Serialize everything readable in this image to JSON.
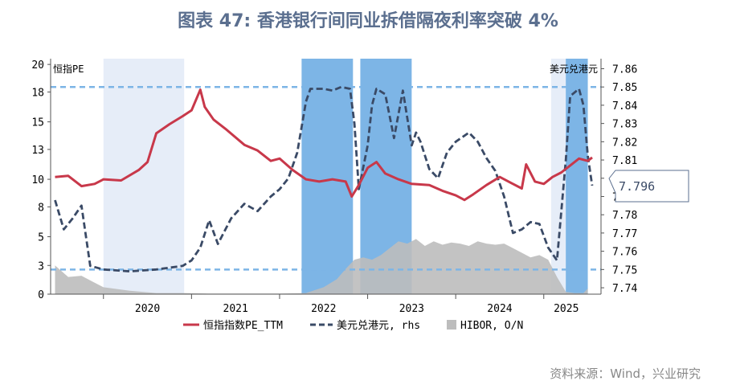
{
  "chart_data": {
    "type": "line",
    "title": "图表 47: 香港银行间同业拆借隔夜利率突破 4%",
    "left_axis_label": "恒指PE",
    "right_axis_label": "美元兑港元",
    "left_ticks": [
      "20",
      "18",
      "15",
      "13",
      "10",
      "8",
      "5",
      "3",
      "0"
    ],
    "right_ticks": [
      "7.86",
      "7.85",
      "7.84",
      "7.83",
      "7.82",
      "7.81",
      "7.80",
      "7.79",
      "7.78",
      "7.77",
      "7.76",
      "7.75",
      "7.74"
    ],
    "x_ticks": [
      "2020",
      "2021",
      "2022",
      "2023",
      "2024",
      "2025"
    ],
    "legend": [
      "恒指指数PE_TTM",
      "美元兑港元, rhs",
      "HIBOR, O/N"
    ],
    "callout_value": "7.796",
    "ref_lines_rhs": [
      7.85,
      7.75
    ],
    "shaded_periods_light": [
      [
        "2020-01",
        "2020-12"
      ],
      [
        "2025-02",
        "2025-04"
      ]
    ],
    "shaded_periods_dark": [
      [
        "2022-04",
        "2022-11"
      ],
      [
        "2022-12",
        "2023-07"
      ],
      [
        "2025-04",
        "2025-07"
      ]
    ],
    "series": [
      {
        "name": "恒指指数PE_TTM",
        "axis": "left",
        "color": "#c8384a",
        "points": [
          [
            2019.45,
            10.2
          ],
          [
            2019.6,
            10.3
          ],
          [
            2019.75,
            9.4
          ],
          [
            2019.9,
            9.6
          ],
          [
            2020.0,
            10.0
          ],
          [
            2020.2,
            9.9
          ],
          [
            2020.4,
            10.8
          ],
          [
            2020.5,
            11.5
          ],
          [
            2020.6,
            14.0
          ],
          [
            2020.75,
            14.8
          ],
          [
            2020.9,
            15.5
          ],
          [
            2021.0,
            16.0
          ],
          [
            2021.1,
            17.8
          ],
          [
            2021.15,
            16.3
          ],
          [
            2021.25,
            15.2
          ],
          [
            2021.4,
            14.3
          ],
          [
            2021.6,
            13.0
          ],
          [
            2021.75,
            12.5
          ],
          [
            2021.9,
            11.6
          ],
          [
            2022.0,
            11.8
          ],
          [
            2022.15,
            10.8
          ],
          [
            2022.3,
            10.0
          ],
          [
            2022.45,
            9.8
          ],
          [
            2022.6,
            10.0
          ],
          [
            2022.75,
            9.8
          ],
          [
            2022.82,
            8.5
          ],
          [
            2022.9,
            9.5
          ],
          [
            2023.0,
            11.0
          ],
          [
            2023.1,
            11.5
          ],
          [
            2023.2,
            10.5
          ],
          [
            2023.35,
            10.0
          ],
          [
            2023.5,
            9.6
          ],
          [
            2023.7,
            9.5
          ],
          [
            2023.85,
            9.0
          ],
          [
            2024.0,
            8.6
          ],
          [
            2024.1,
            8.2
          ],
          [
            2024.2,
            8.7
          ],
          [
            2024.35,
            9.5
          ],
          [
            2024.5,
            10.2
          ],
          [
            2024.65,
            9.6
          ],
          [
            2024.75,
            9.2
          ],
          [
            2024.8,
            11.3
          ],
          [
            2024.9,
            9.8
          ],
          [
            2025.0,
            9.6
          ],
          [
            2025.1,
            10.2
          ],
          [
            2025.2,
            10.6
          ],
          [
            2025.3,
            11.2
          ],
          [
            2025.4,
            11.8
          ],
          [
            2025.5,
            11.6
          ],
          [
            2025.55,
            11.9
          ]
        ]
      },
      {
        "name": "美元兑港元, rhs",
        "axis": "right",
        "color": "#3a4a66",
        "points": [
          [
            2019.45,
            7.788
          ],
          [
            2019.55,
            7.772
          ],
          [
            2019.65,
            7.778
          ],
          [
            2019.75,
            7.785
          ],
          [
            2019.85,
            7.752
          ],
          [
            2020.0,
            7.75
          ],
          [
            2020.3,
            7.749
          ],
          [
            2020.6,
            7.75
          ],
          [
            2020.9,
            7.752
          ],
          [
            2021.0,
            7.755
          ],
          [
            2021.1,
            7.762
          ],
          [
            2021.2,
            7.777
          ],
          [
            2021.3,
            7.764
          ],
          [
            2021.45,
            7.778
          ],
          [
            2021.6,
            7.786
          ],
          [
            2021.75,
            7.782
          ],
          [
            2021.9,
            7.79
          ],
          [
            2022.0,
            7.794
          ],
          [
            2022.1,
            7.8
          ],
          [
            2022.2,
            7.814
          ],
          [
            2022.3,
            7.842
          ],
          [
            2022.35,
            7.849
          ],
          [
            2022.5,
            7.849
          ],
          [
            2022.6,
            7.848
          ],
          [
            2022.7,
            7.85
          ],
          [
            2022.8,
            7.849
          ],
          [
            2022.85,
            7.83
          ],
          [
            2022.9,
            7.794
          ],
          [
            2022.95,
            7.806
          ],
          [
            2023.0,
            7.818
          ],
          [
            2023.05,
            7.84
          ],
          [
            2023.1,
            7.849
          ],
          [
            2023.2,
            7.846
          ],
          [
            2023.3,
            7.822
          ],
          [
            2023.4,
            7.848
          ],
          [
            2023.5,
            7.818
          ],
          [
            2023.55,
            7.825
          ],
          [
            2023.6,
            7.82
          ],
          [
            2023.7,
            7.805
          ],
          [
            2023.8,
            7.8
          ],
          [
            2023.9,
            7.814
          ],
          [
            2024.0,
            7.82
          ],
          [
            2024.15,
            7.825
          ],
          [
            2024.25,
            7.82
          ],
          [
            2024.35,
            7.811
          ],
          [
            2024.45,
            7.804
          ],
          [
            2024.55,
            7.79
          ],
          [
            2024.65,
            7.77
          ],
          [
            2024.75,
            7.772
          ],
          [
            2024.85,
            7.776
          ],
          [
            2024.95,
            7.775
          ],
          [
            2025.05,
            7.762
          ],
          [
            2025.15,
            7.755
          ],
          [
            2025.25,
            7.81
          ],
          [
            2025.3,
            7.845
          ],
          [
            2025.4,
            7.849
          ],
          [
            2025.45,
            7.84
          ],
          [
            2025.5,
            7.812
          ],
          [
            2025.55,
            7.796
          ]
        ]
      },
      {
        "name": "HIBOR, O/N",
        "axis": "left",
        "color": "#bdbdbd",
        "points": [
          [
            2019.45,
            2.5
          ],
          [
            2019.6,
            1.5
          ],
          [
            2019.75,
            1.6
          ],
          [
            2019.9,
            1.0
          ],
          [
            2020.0,
            0.6
          ],
          [
            2020.3,
            0.3
          ],
          [
            2020.6,
            0.1
          ],
          [
            2020.9,
            0.1
          ],
          [
            2021.2,
            0.05
          ],
          [
            2021.6,
            0.05
          ],
          [
            2022.0,
            0.05
          ],
          [
            2022.3,
            0.1
          ],
          [
            2022.5,
            0.6
          ],
          [
            2022.65,
            1.3
          ],
          [
            2022.75,
            2.2
          ],
          [
            2022.85,
            3.0
          ],
          [
            2022.95,
            3.2
          ],
          [
            2023.05,
            3.0
          ],
          [
            2023.15,
            3.4
          ],
          [
            2023.25,
            4.0
          ],
          [
            2023.35,
            4.6
          ],
          [
            2023.45,
            4.4
          ],
          [
            2023.55,
            4.8
          ],
          [
            2023.65,
            4.2
          ],
          [
            2023.75,
            4.6
          ],
          [
            2023.85,
            4.3
          ],
          [
            2023.95,
            4.5
          ],
          [
            2024.05,
            4.4
          ],
          [
            2024.15,
            4.2
          ],
          [
            2024.25,
            4.6
          ],
          [
            2024.35,
            4.4
          ],
          [
            2024.45,
            4.3
          ],
          [
            2024.55,
            4.4
          ],
          [
            2024.65,
            4.0
          ],
          [
            2024.75,
            3.6
          ],
          [
            2024.85,
            3.2
          ],
          [
            2024.95,
            3.4
          ],
          [
            2025.05,
            3.0
          ],
          [
            2025.15,
            1.5
          ],
          [
            2025.25,
            0.2
          ],
          [
            2025.35,
            0.1
          ],
          [
            2025.45,
            0.1
          ],
          [
            2025.5,
            0.5
          ]
        ]
      }
    ]
  },
  "source_text": "资料来源：Wind，兴业研究"
}
